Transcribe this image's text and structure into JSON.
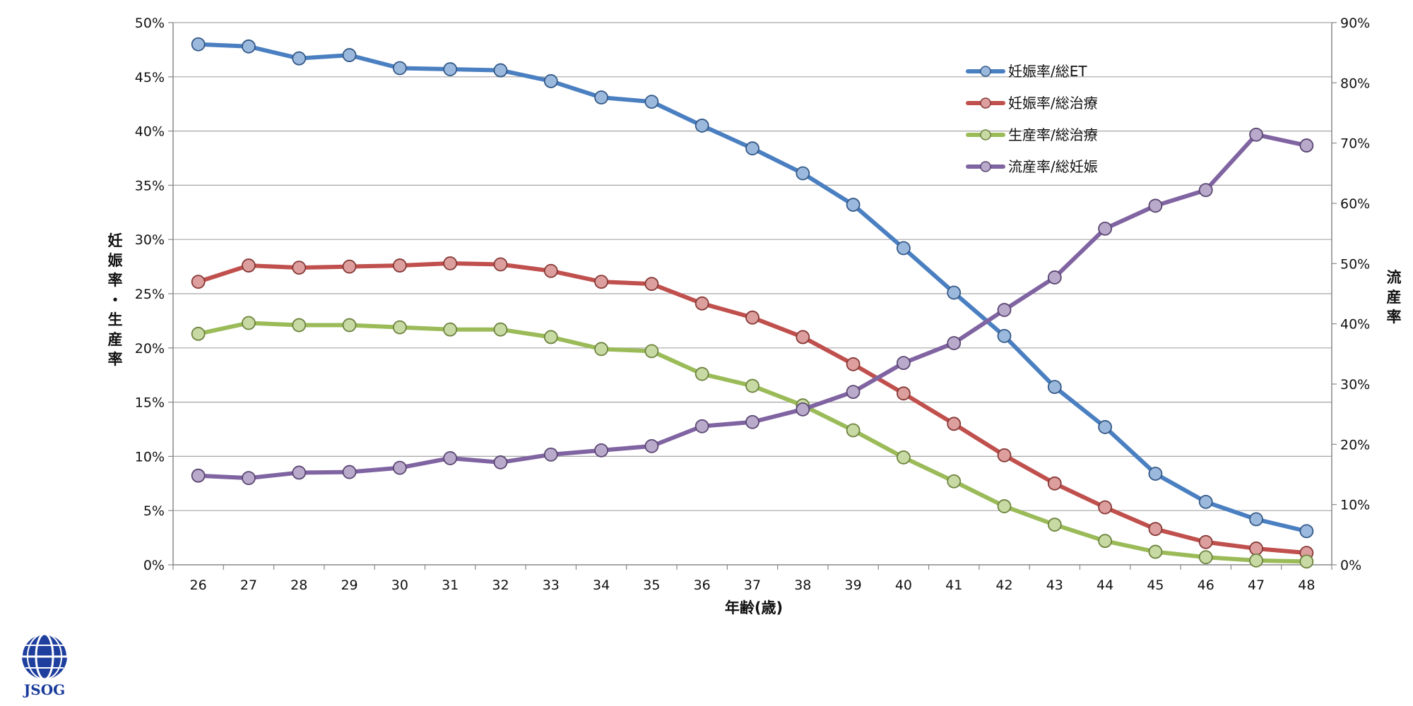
{
  "colors": {
    "pregnancy_et": "#4a7fc1",
    "pregnancy_treat": "#c0504d",
    "birth_treat": "#9bbb59",
    "miscarriage": "#8064a2",
    "grid": "#a6a6a6",
    "axis": "#888888"
  },
  "chart_data": {
    "type": "line",
    "x": [
      26,
      27,
      28,
      29,
      30,
      31,
      32,
      33,
      34,
      35,
      36,
      37,
      38,
      39,
      40,
      41,
      42,
      43,
      44,
      45,
      46,
      47,
      48
    ],
    "xlabel": "年齢(歳)",
    "ylabel_left": "妊娠率・生産率",
    "ylabel_right": "流産率",
    "ylim_left": [
      0,
      50
    ],
    "ylim_right": [
      0,
      90
    ],
    "yticks_left": [
      "0%",
      "5%",
      "10%",
      "15%",
      "20%",
      "25%",
      "30%",
      "35%",
      "40%",
      "45%",
      "50%"
    ],
    "yticks_right": [
      "0%",
      "10%",
      "20%",
      "30%",
      "40%",
      "50%",
      "60%",
      "70%",
      "80%",
      "90%"
    ],
    "grid": true,
    "legend_position": "top-right",
    "series": [
      {
        "name": "妊娠率/総ET",
        "axis": "left",
        "color_key": "pregnancy_et",
        "values": [
          48.0,
          47.8,
          46.7,
          47.0,
          45.8,
          45.7,
          45.6,
          44.6,
          43.1,
          42.7,
          40.5,
          38.4,
          36.1,
          33.2,
          29.2,
          25.1,
          21.1,
          16.4,
          12.7,
          8.4,
          5.8,
          4.2,
          3.1
        ]
      },
      {
        "name": "妊娠率/総治療",
        "axis": "left",
        "color_key": "pregnancy_treat",
        "values": [
          26.1,
          27.6,
          27.4,
          27.5,
          27.6,
          27.8,
          27.7,
          27.1,
          26.1,
          25.9,
          24.1,
          22.8,
          21.0,
          18.5,
          15.8,
          13.0,
          10.1,
          7.5,
          5.3,
          3.3,
          2.1,
          1.5,
          1.1
        ]
      },
      {
        "name": "生産率/総治療",
        "axis": "left",
        "color_key": "birth_treat",
        "values": [
          21.3,
          22.3,
          22.1,
          22.1,
          21.9,
          21.7,
          21.7,
          21.0,
          19.9,
          19.7,
          17.6,
          16.5,
          14.7,
          12.4,
          9.9,
          7.7,
          5.4,
          3.7,
          2.2,
          1.2,
          0.7,
          0.4,
          0.3
        ]
      },
      {
        "name": "流産率/総妊娠",
        "axis": "right",
        "color_key": "miscarriage",
        "values": [
          14.8,
          14.4,
          15.3,
          15.4,
          16.1,
          17.7,
          17.0,
          18.3,
          19.0,
          19.7,
          23.0,
          23.7,
          25.8,
          28.7,
          33.5,
          36.8,
          42.3,
          47.7,
          55.8,
          59.6,
          62.2,
          71.4,
          69.6
        ]
      }
    ]
  },
  "logo": {
    "text": "JSOG"
  }
}
